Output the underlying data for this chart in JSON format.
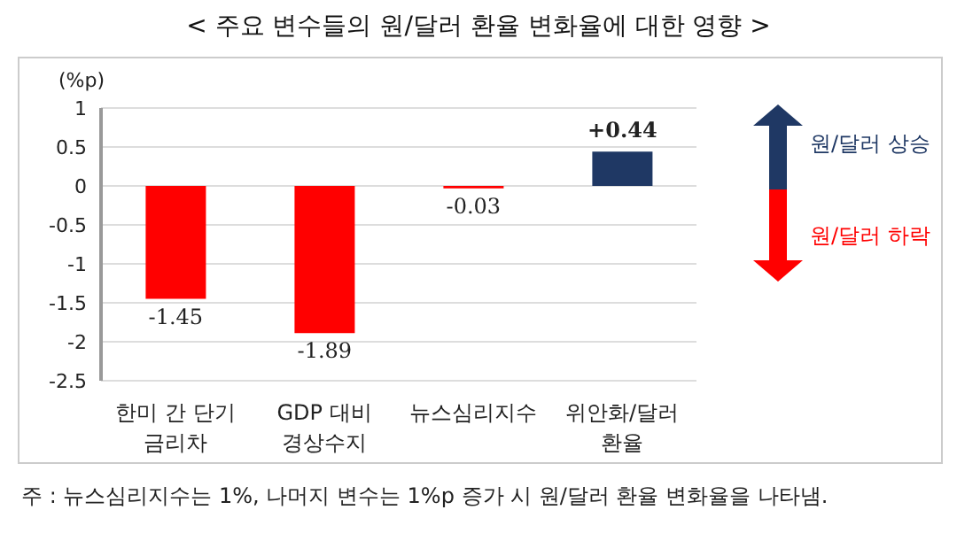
{
  "chart_data": {
    "type": "bar",
    "title": "< 주요 변수들의 원/달러 환율 변화율에 대한 영향 >",
    "ylabel": "(%p)",
    "categories": [
      "한미 간 단기\n금리차",
      "GDP 대비\n경상수지",
      "뉴스심리지수",
      "위안화/달러\n환율"
    ],
    "values": [
      -1.45,
      -1.89,
      -0.03,
      0.44
    ],
    "colors": [
      "#ff0000",
      "#ff0000",
      "#ff0000",
      "#1f3864"
    ],
    "value_labels": [
      "-1.45",
      "-1.89",
      "-0.03",
      "+0.44"
    ],
    "ylim": [
      -2.5,
      1
    ],
    "yticks": [
      {
        "value": -2.5,
        "label": "-2.5"
      },
      {
        "value": -2,
        "label": "-2"
      },
      {
        "value": -1.5,
        "label": "-1.5"
      },
      {
        "value": -1,
        "label": "-1"
      },
      {
        "value": -0.5,
        "label": "-0.5"
      },
      0,
      0.5,
      1
    ],
    "grid": "y",
    "annotations": [
      "원/달러 상승",
      "원/달러 하락",
      "주 : 뉴스심리지수는 1%, 나머지 변수는 1%p 증가 시 원/달러 환율 변화율을 나타냄."
    ]
  }
}
